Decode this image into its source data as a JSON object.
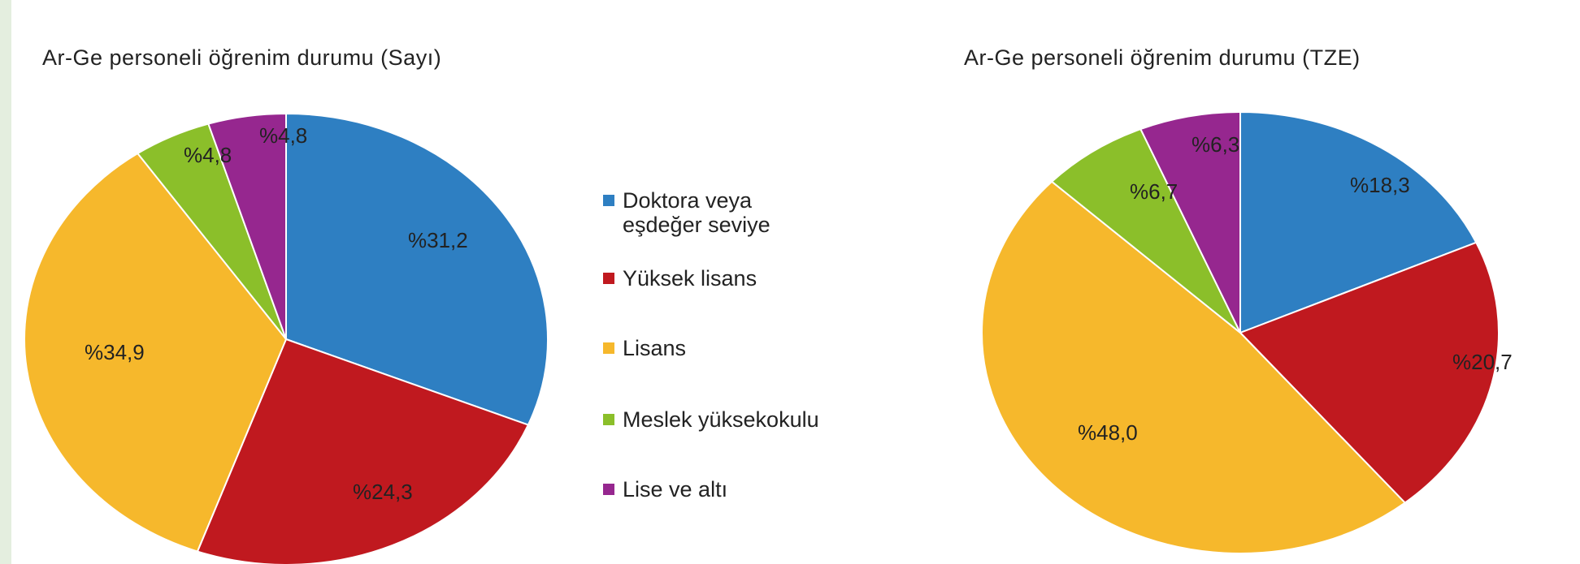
{
  "chart_data": [
    {
      "type": "pie",
      "title": "Ar-Ge personeli öğrenim durumu (Sayı)",
      "categories": [
        "Doktora veya eşdeğer seviye",
        "Yüksek lisans",
        "Lisans",
        "Meslek yüksekokulu",
        "Lise ve altı"
      ],
      "values": [
        31.2,
        24.3,
        34.9,
        4.8,
        4.8
      ],
      "data_labels": [
        "%31,2",
        "%24,3",
        "%34,9",
        "%4,8",
        "%4,8"
      ],
      "colors": [
        "#2e7fc2",
        "#c0191f",
        "#f6b82c",
        "#8bbf2a",
        "#96278f"
      ]
    },
    {
      "type": "pie",
      "title": "Ar-Ge personeli öğrenim durumu (TZE)",
      "categories": [
        "Doktora veya eşdeğer seviye",
        "Yüksek lisans",
        "Lisans",
        "Meslek yüksekokulu",
        "Lise ve altı"
      ],
      "values": [
        18.3,
        20.7,
        48.0,
        6.7,
        6.3
      ],
      "data_labels": [
        "%18,3",
        "%20,7",
        "%48,0",
        "%6,7",
        "%6,3"
      ],
      "colors": [
        "#2e7fc2",
        "#c0191f",
        "#f6b82c",
        "#8bbf2a",
        "#96278f"
      ]
    }
  ],
  "legend": {
    "items": [
      {
        "label": "Doktora veya",
        "label2": "eşdeğer seviye",
        "color": "#2e7fc2"
      },
      {
        "label": "Yüksek lisans",
        "label2": "",
        "color": "#c0191f"
      },
      {
        "label": "Lisans",
        "label2": "",
        "color": "#f6b82c"
      },
      {
        "label": "Meslek yüksekokulu",
        "label2": "",
        "color": "#8bbf2a"
      },
      {
        "label": "Lise ve altı",
        "label2": "",
        "color": "#96278f"
      }
    ]
  }
}
